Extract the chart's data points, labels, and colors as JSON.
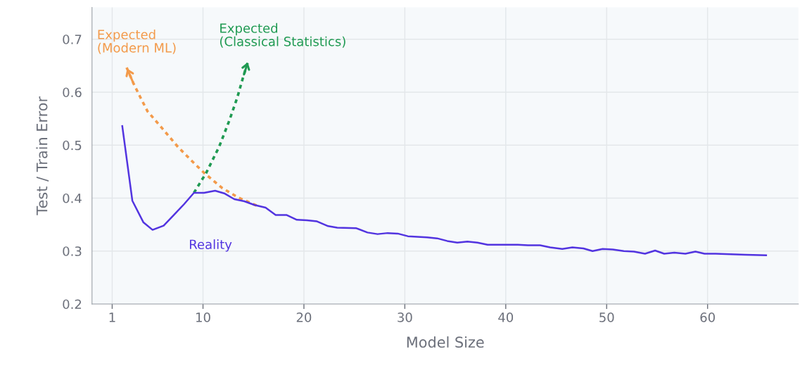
{
  "chart_data": {
    "type": "line",
    "xlabel": "Model Size",
    "ylabel": "Test / Train Error",
    "xlim": [
      -1,
      69
    ],
    "ylim": [
      0.2,
      0.76
    ],
    "xticks": [
      1,
      10,
      20,
      30,
      40,
      50,
      60
    ],
    "yticks": [
      {
        "value": 0.2,
        "label": "0.2"
      },
      {
        "value": 0.3,
        "label": "0.3"
      },
      {
        "value": 0.4,
        "label": "0.4"
      },
      {
        "value": 0.5,
        "label": "0.5"
      },
      {
        "value": 0.6,
        "label": "0.6"
      },
      {
        "value": 0.7,
        "label": "0.7"
      }
    ],
    "grid": true,
    "legend": false,
    "series": [
      {
        "name": "Reality",
        "color": "#5234e0",
        "line_style": "solid",
        "x": [
          2.0,
          3.0,
          4.1,
          5.0,
          6.1,
          7.1,
          8.1,
          9.1,
          10.1,
          11.2,
          12.1,
          13.1,
          14.1,
          15.1,
          16.2,
          17.2,
          18.3,
          19.3,
          20.3,
          21.3,
          22.4,
          23.3,
          25.2,
          26.3,
          27.3,
          28.3,
          29.3,
          30.3,
          32.2,
          33.2,
          34.2,
          35.2,
          36.2,
          37.2,
          38.2,
          39.2,
          40.2,
          41.2,
          42.2,
          43.4,
          44.4,
          45.6,
          46.6,
          47.7,
          48.6,
          49.6,
          50.6,
          51.7,
          52.7,
          53.8,
          54.8,
          55.7,
          56.7,
          57.8,
          58.8,
          59.7,
          60.8,
          62.3,
          63.8,
          65.8
        ],
        "values": [
          0.536,
          0.395,
          0.354,
          0.34,
          0.348,
          0.368,
          0.388,
          0.41,
          0.41,
          0.414,
          0.409,
          0.398,
          0.394,
          0.387,
          0.382,
          0.368,
          0.368,
          0.359,
          0.358,
          0.356,
          0.347,
          0.344,
          0.343,
          0.335,
          0.332,
          0.334,
          0.333,
          0.328,
          0.326,
          0.324,
          0.319,
          0.316,
          0.318,
          0.316,
          0.312,
          0.312,
          0.312,
          0.312,
          0.311,
          0.311,
          0.307,
          0.304,
          0.307,
          0.305,
          0.3,
          0.304,
          0.303,
          0.3,
          0.299,
          0.295,
          0.301,
          0.295,
          0.297,
          0.295,
          0.299,
          0.295,
          0.295,
          0.294,
          0.293,
          0.292
        ]
      },
      {
        "name": "Expected\n(Modern ML)",
        "color": "#f39a4a",
        "line_style": "dotted",
        "x": [
          15.3,
          13.5,
          11.9,
          10.2,
          8.9,
          7.5,
          5.9,
          4.5,
          3.8,
          3.1,
          2.4
        ],
        "values": [
          0.386,
          0.401,
          0.419,
          0.446,
          0.47,
          0.497,
          0.533,
          0.564,
          0.59,
          0.617,
          0.648
        ]
      },
      {
        "name": "Expected\n(Classical Statistics)",
        "color": "#1f9a52",
        "line_style": "dotted",
        "x": [
          9.1,
          10.3,
          11.6,
          12.6,
          13.4,
          14.0,
          14.5
        ],
        "values": [
          0.41,
          0.447,
          0.497,
          0.546,
          0.59,
          0.63,
          0.66
        ]
      }
    ]
  }
}
